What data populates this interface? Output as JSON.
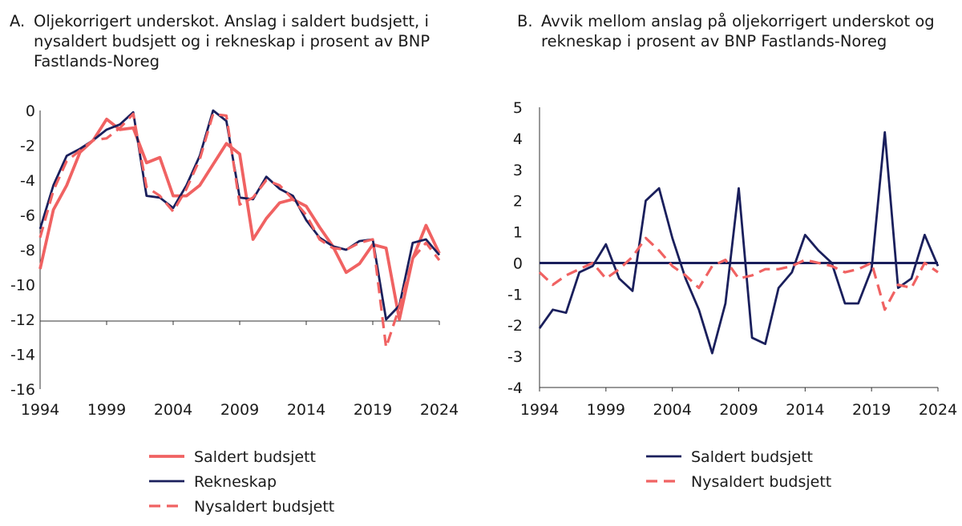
{
  "chart_data": [
    {
      "type": "line",
      "title_letter": "A.",
      "title_lines": [
        "Oljekorrigert underskot. Anslag i saldert budsjett, i",
        "nysaldert budsjett og i rekneskap i prosent av BNP",
        "Fastlands-Noreg"
      ],
      "xlabel": "",
      "ylabel": "",
      "x_ticks": [
        "1994",
        "1999",
        "2004",
        "2009",
        "2014",
        "2019",
        "2024"
      ],
      "y_ticks": [
        "0",
        "-2",
        "-4",
        "-6",
        "-8",
        "-10",
        "-12",
        "-14",
        "-16"
      ],
      "xlim": [
        1994,
        2024
      ],
      "ylim": [
        -16,
        0
      ],
      "grid": false,
      "legend_position": "bottom",
      "x": [
        1994,
        1995,
        1996,
        1997,
        1998,
        1999,
        2000,
        2001,
        2002,
        2003,
        2004,
        2005,
        2006,
        2007,
        2008,
        2009,
        2010,
        2011,
        2012,
        2013,
        2014,
        2015,
        2016,
        2017,
        2018,
        2019,
        2020,
        2021,
        2022,
        2023,
        2024
      ],
      "series": [
        {
          "name": "Saldert budsjett",
          "color": "#f06262",
          "dash": "solid",
          "width": 3.8,
          "values": [
            -9.1,
            -5.7,
            -4.3,
            -2.4,
            -1.7,
            -0.5,
            -1.1,
            -1.0,
            -3.0,
            -2.7,
            -4.9,
            -4.9,
            -4.3,
            -3.1,
            -1.9,
            -2.5,
            -7.4,
            -6.2,
            -5.3,
            -5.1,
            -5.5,
            -6.7,
            -7.8,
            -9.3,
            -8.8,
            -7.7,
            -7.9,
            -12.0,
            -8.5,
            -6.6,
            -8.2
          ]
        },
        {
          "name": "Rekneskap",
          "color": "#1a1f5c",
          "dash": "solid",
          "width": 2.8,
          "values": [
            -6.8,
            -4.3,
            -2.6,
            -2.2,
            -1.7,
            -1.1,
            -0.8,
            -0.1,
            -4.9,
            -5.0,
            -5.6,
            -4.3,
            -2.6,
            0.0,
            -0.6,
            -5.0,
            -5.1,
            -3.8,
            -4.5,
            -4.9,
            -6.3,
            -7.3,
            -7.8,
            -8.0,
            -7.5,
            -7.4,
            -12.0,
            -11.2,
            -7.6,
            -7.4,
            -8.3
          ]
        },
        {
          "name": "Nysaldert budsjett",
          "color": "#f06262",
          "dash": "dashed",
          "width": 3.2,
          "values": [
            -7.3,
            -4.6,
            -2.9,
            -2.3,
            -1.7,
            -1.6,
            -1.0,
            -0.2,
            -4.4,
            -4.9,
            -5.8,
            -4.5,
            -2.8,
            -0.2,
            -0.3,
            -5.4,
            -5.0,
            -4.0,
            -4.3,
            -5.1,
            -6.0,
            -7.4,
            -7.9,
            -8.0,
            -7.6,
            -7.4,
            -13.6,
            -11.3,
            -8.5,
            -7.6,
            -8.6
          ]
        }
      ],
      "legend_order": [
        "Saldert budsjett",
        "Rekneskap",
        "Nysaldert budsjett"
      ]
    },
    {
      "type": "line",
      "title_letter": "B.",
      "title_lines": [
        "Avvik mellom anslag på oljekorrigert underskot og",
        "rekneskap i prosent av BNP Fastlands-Noreg"
      ],
      "xlabel": "",
      "ylabel": "",
      "x_ticks": [
        "1994",
        "1999",
        "2004",
        "2009",
        "2014",
        "2019",
        "2024"
      ],
      "y_ticks": [
        "5",
        "4",
        "3",
        "2",
        "1",
        "0",
        "-1",
        "-2",
        "-3",
        "-4"
      ],
      "xlim": [
        1994,
        2024
      ],
      "ylim": [
        -4,
        5
      ],
      "grid": false,
      "zero_line": true,
      "legend_position": "bottom",
      "x": [
        1994,
        1995,
        1996,
        1997,
        1998,
        1999,
        2000,
        2001,
        2002,
        2003,
        2004,
        2005,
        2006,
        2007,
        2008,
        2009,
        2010,
        2011,
        2012,
        2013,
        2014,
        2015,
        2016,
        2017,
        2018,
        2019,
        2020,
        2021,
        2022,
        2023,
        2024
      ],
      "series": [
        {
          "name": "Saldert budsjett",
          "color": "#1a1f5c",
          "dash": "solid",
          "width": 2.8,
          "values": [
            -2.1,
            -1.5,
            -1.6,
            -0.3,
            -0.1,
            0.6,
            -0.5,
            -0.9,
            2.0,
            2.4,
            0.8,
            -0.5,
            -1.5,
            -2.9,
            -1.3,
            2.4,
            -2.4,
            -2.6,
            -0.8,
            -0.3,
            0.9,
            0.4,
            0.0,
            -1.3,
            -1.3,
            -0.2,
            4.2,
            -0.8,
            -0.5,
            0.9,
            -0.1
          ]
        },
        {
          "name": "Nysaldert budsjett",
          "color": "#f06262",
          "dash": "dashed",
          "width": 3.2,
          "values": [
            -0.3,
            -0.7,
            -0.4,
            -0.2,
            0.0,
            -0.5,
            -0.2,
            0.2,
            0.8,
            0.4,
            -0.1,
            -0.4,
            -0.8,
            -0.1,
            0.1,
            -0.5,
            -0.4,
            -0.2,
            -0.2,
            -0.1,
            0.1,
            0.0,
            -0.1,
            -0.3,
            -0.2,
            0.0,
            -1.5,
            -0.7,
            -0.8,
            0.0,
            -0.3
          ]
        }
      ],
      "legend_order": [
        "Saldert budsjett",
        "Nysaldert budsjett"
      ]
    }
  ]
}
